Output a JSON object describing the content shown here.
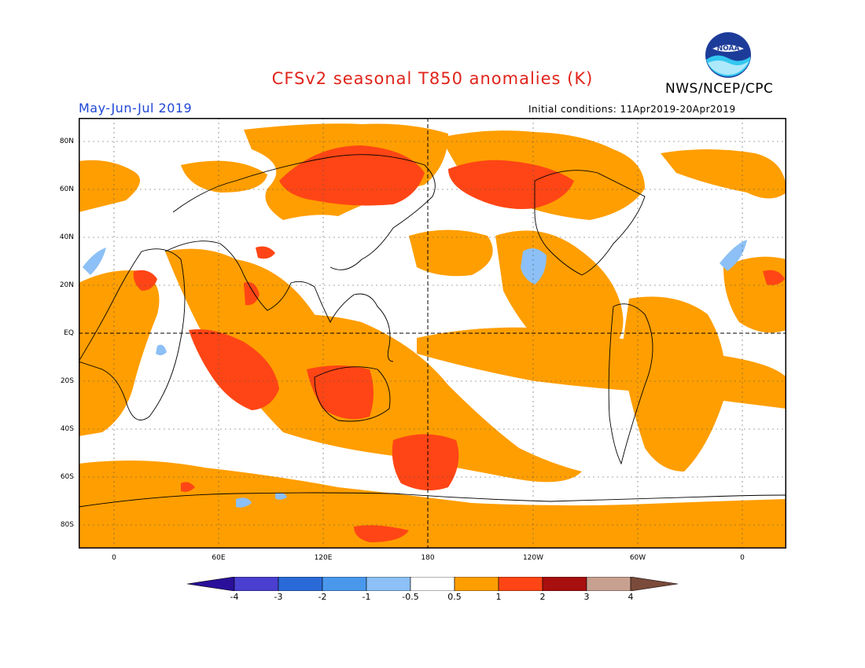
{
  "title": "CFSv2 seasonal T850 anomalies (K)",
  "agency": "NWS/NCEP/CPC",
  "logo_text": "NOAA",
  "season": "May-Jun-Jul 2019",
  "initial_conditions": "Initial conditions: 11Apr2019-20Apr2019",
  "lat_labels": [
    "80N",
    "60N",
    "40N",
    "20N",
    "EQ",
    "20S",
    "40S",
    "60S",
    "80S"
  ],
  "lon_labels": [
    "0",
    "60E",
    "120E",
    "180",
    "120W",
    "60W",
    "0"
  ],
  "colors": {
    "neg4": "#2a0f9a",
    "neg3": "#4a3fd0",
    "neg2": "#2a6ad8",
    "neg1": "#4a98ec",
    "neg05": "#8cc0f6",
    "neutral": "#ffffff",
    "pos05": "#ff9e00",
    "pos1": "#ff4515",
    "pos2": "#a80f0f",
    "pos3": "#c8a090",
    "pos4": "#7a4a3a"
  },
  "legend": {
    "labels": [
      "-4",
      "-3",
      "-2",
      "-1",
      "-0.5",
      "0.5",
      "1",
      "2",
      "3",
      "4"
    ]
  }
}
